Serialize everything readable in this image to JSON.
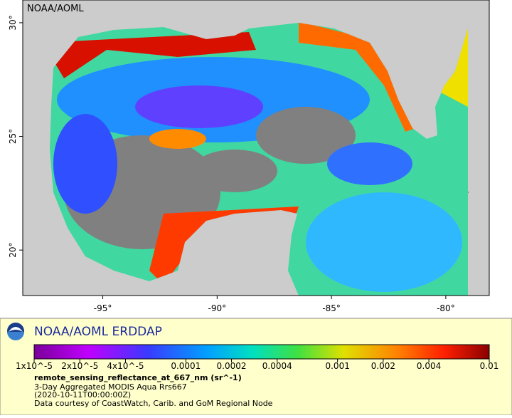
{
  "map": {
    "watermark": "NOAA/AOML",
    "xlim": [
      -98.5,
      -78.1
    ],
    "ylim": [
      18,
      31
    ],
    "xticks": [
      {
        "value": -95,
        "label": "-95°"
      },
      {
        "value": -90,
        "label": "-90°"
      },
      {
        "value": -85,
        "label": "-85°"
      },
      {
        "value": -80,
        "label": "-80°"
      }
    ],
    "yticks": [
      {
        "value": 30,
        "label": "30°"
      },
      {
        "value": 25,
        "label": "25°"
      },
      {
        "value": 20,
        "label": "20°"
      }
    ]
  },
  "legend": {
    "title": "NOAA/AOML ERDDAP",
    "log_scale": true,
    "lim": [
      1e-05,
      0.01
    ],
    "ticks": [
      {
        "value": 1e-05,
        "label": "1x10^-5"
      },
      {
        "value": 2e-05,
        "label": "2x10^-5"
      },
      {
        "value": 4e-05,
        "label": "4x10^-5"
      },
      0.0001,
      0.0002,
      0.0004,
      0.001,
      0.002,
      0.004,
      0.01
    ],
    "variable": "remote_sensing_reflectance_at_667_nm (sr^-1)",
    "dataset": "3-Day Aggregated MODIS Aqua Rrs667",
    "time": "(2020-10-11T00:00:00Z)",
    "credit": "Data courtesy of CoastWatch, Carib. and GoM Regional Node"
  }
}
